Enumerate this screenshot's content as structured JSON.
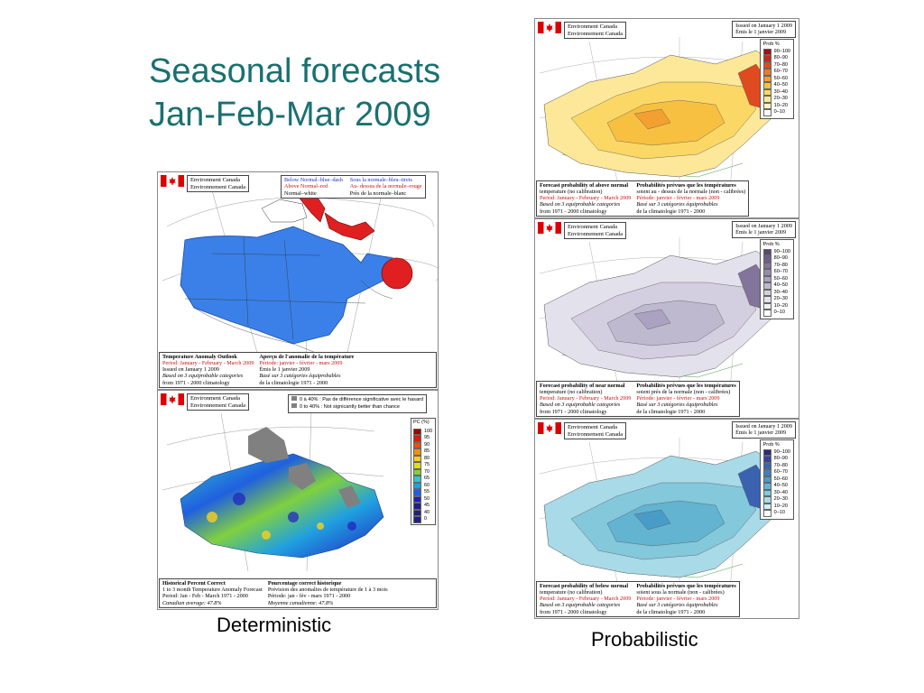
{
  "slide": {
    "title_line1": "Seasonal forecasts",
    "title_line2": "Jan-Feb-Mar 2009",
    "caption_left": "Deterministic",
    "caption_right": "Probabilistic"
  },
  "common": {
    "ec_en": "Environment Canada",
    "ec_fr": "Environnement Canada",
    "issued_en": "Issued on January 1 2009",
    "issued_fr": "Émis le 1 janvier 2009",
    "prob_title": "Prob %",
    "prob_bins": [
      "90–100",
      "80–90",
      "70–80",
      "60–70",
      "50–60",
      "40–50",
      "30–40",
      "20–30",
      "10–20",
      "0–10"
    ]
  },
  "colors": {
    "title": "#1a7070",
    "anomaly_below": "#3a80e8",
    "anomaly_above": "#e02020",
    "prob_above": [
      "#a01010",
      "#c82818",
      "#e04a20",
      "#ec7a28",
      "#f4a030",
      "#f8c040",
      "#fbd866",
      "#fde89a",
      "#fff4c8",
      "#ffffff"
    ],
    "prob_near": [
      "#5a4a72",
      "#6e5e86",
      "#82749a",
      "#968aae",
      "#aaa2c0",
      "#bfb9d0",
      "#d3cfe0",
      "#e3e1ec",
      "#f1f0f6",
      "#ffffff"
    ],
    "prob_below": [
      "#2a2a7a",
      "#33449a",
      "#3a62b0",
      "#3e80c0",
      "#4a9cc8",
      "#62b4d0",
      "#84c8dc",
      "#a8dae8",
      "#d0ecf4",
      "#ffffff"
    ],
    "pc_scale": [
      "#a00000",
      "#d02010",
      "#e85010",
      "#f09010",
      "#f8d020",
      "#d8e020",
      "#80d040",
      "#30c8c8",
      "#20a0e0",
      "#2060e0",
      "#2020c0",
      "#202080"
    ]
  },
  "anomaly": {
    "legend_en": [
      "Below Normal–blue–dash",
      "Above Normal–red",
      "Normal–white"
    ],
    "legend_fr": [
      "Sous la normale–bleu–tirets",
      "Au- dessus de la normale–rouge",
      "Près de la normale–blanc"
    ],
    "foot_en": [
      "Temperature Anomaly Outlook",
      "Period: January - February - March 2009",
      "Issued on January 1 2009",
      "Based on 3 equiprobable categories",
      "from 1971 - 2000 climatology"
    ],
    "foot_fr": [
      "Aperçu de l'anomalie de la température",
      "Période: janvier - février - mars 2009",
      "Émis le 1 janvier 2009",
      "Basé sur 3 catégories équiprobables",
      "de la climatologie 1971 - 2000"
    ]
  },
  "skill": {
    "legend_fr": "0 à 40% : Pas de différence significative avec le hasard",
    "legend_en": "0 to 40% : Not signicantly better than chance",
    "scale_title": "PC (%)",
    "scale_labels": [
      "100",
      "95",
      "90",
      "85",
      "80",
      "75",
      "70",
      "65",
      "60",
      "55",
      "50",
      "45",
      "40",
      "0"
    ],
    "foot_en": [
      "Historical Percent Correct",
      "1 to 3 month Temperature Anomaly Forecast",
      "Period: Jan - Feb - March 1971 - 2000",
      "Canadian average: 47.8%"
    ],
    "foot_fr": [
      "Pourcentage correct historique",
      "Prévision des anomalies de température de 1 à 3 mois",
      "Période: jan - fév - mars 1971 - 2000",
      "Moyenne canadienne: 47.8%"
    ]
  },
  "prob_above": {
    "foot_en": [
      "Forecast probability of above normal",
      "temperature (no calibration)",
      "Period: January - February - March 2009",
      "Based on 3 equiprobable categories",
      "from 1971 - 2000 climatology"
    ],
    "foot_fr": [
      "Probabilités prévues que les températures",
      "soient au - dessus de la normale (non - calibrées)",
      "Période: janvier - février - mars 2009",
      "Basé sur 3 catégories équiprobables",
      "de la climatologie 1971 - 2000"
    ]
  },
  "prob_near": {
    "foot_en": [
      "Forecast probability of near normal",
      "temperature (no calibration)",
      "Period: January - February - March 2009",
      "Based on 3 equiprobable categories",
      "from 1971 - 2000 climatology"
    ],
    "foot_fr": [
      "Probabilités prévues que les températures",
      "soient près de la normale (non - calibrées)",
      "Période: janvier - février - mars 2009",
      "Basé sur 3 catégories équiprobables",
      "de la climatologie 1971 - 2000"
    ]
  },
  "prob_below": {
    "foot_en": [
      "Forecast probability of below normal",
      "temperature (no calibration)",
      "Period: January - February - March 2009",
      "Based on 3 equiprobable categories",
      "from 1971 - 2000 climatology"
    ],
    "foot_fr": [
      "Probabilités prévues que les températures",
      "soient sous la normale (non - calibrées)",
      "Période: janvier - février - mars 2009",
      "Basé sur 3 catégories équiprobables",
      "de la climatologie 1971 - 2000"
    ]
  }
}
